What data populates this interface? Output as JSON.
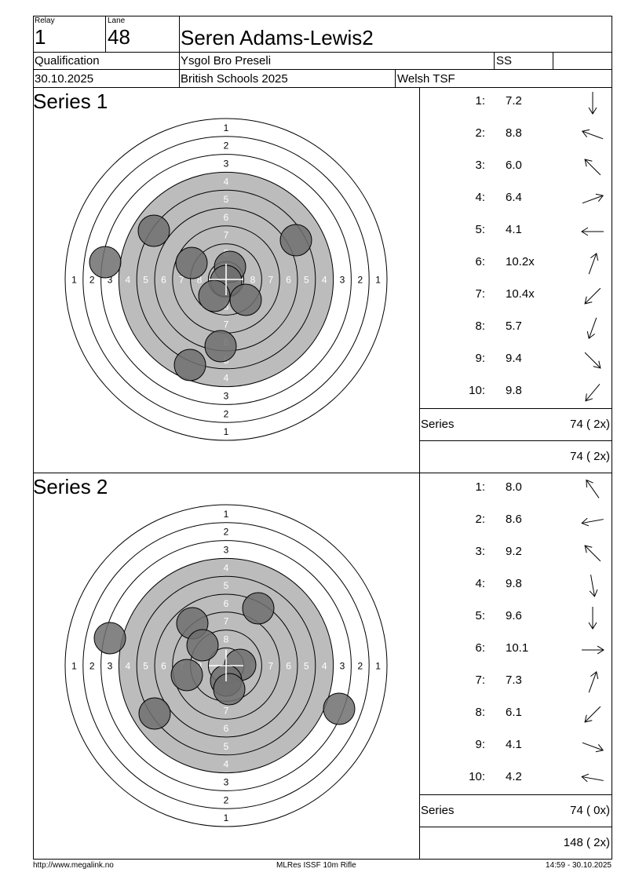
{
  "header": {
    "relay_label": "Relay",
    "relay_value": "1",
    "lane_label": "Lane",
    "lane_value": "48",
    "athlete_name": "Seren Adams-Lewis2",
    "stage": "Qualification",
    "club": "Ysgol Bro Preseli",
    "category": "SS",
    "category_extra": "",
    "date": "30.10.2025",
    "competition": "British Schools 2025",
    "organisation": "Welsh TSF"
  },
  "series": [
    {
      "title": "Series 1",
      "ring_labels": [
        "1",
        "2",
        "3",
        "4",
        "5",
        "6",
        "7",
        "8"
      ],
      "shots": [
        {
          "num": "1:",
          "score": "7.2",
          "dir": 180
        },
        {
          "num": "2:",
          "score": "8.8",
          "dir": -70
        },
        {
          "num": "3:",
          "score": "6.0",
          "dir": -45
        },
        {
          "num": "4:",
          "score": "6.4",
          "dir": 70
        },
        {
          "num": "5:",
          "score": "4.1",
          "dir": -90
        },
        {
          "num": "6:",
          "score": "10.2x",
          "dir": 20
        },
        {
          "num": "7:",
          "score": "10.4x",
          "dir": -135
        },
        {
          "num": "8:",
          "score": "5.7",
          "dir": -160
        },
        {
          "num": "9:",
          "score": "9.4",
          "dir": 135
        },
        {
          "num": "10:",
          "score": "9.8",
          "dir": -140
        }
      ],
      "hits": [
        {
          "x": -92,
          "y": -62
        },
        {
          "x": -154,
          "y": -22
        },
        {
          "x": 89,
          "y": -50
        },
        {
          "x": -44,
          "y": -21
        },
        {
          "x": 5,
          "y": -16
        },
        {
          "x": 0,
          "y": 2
        },
        {
          "x": -15,
          "y": 21
        },
        {
          "x": 25,
          "y": 26
        },
        {
          "x": -7,
          "y": 85
        },
        {
          "x": -46,
          "y": 109
        }
      ],
      "series_label": "Series",
      "series_total": "74 ( 2x)",
      "running_total": "74 ( 2x)"
    },
    {
      "title": "Series 2",
      "ring_labels": [
        "1",
        "2",
        "3",
        "4",
        "5",
        "6",
        "7",
        "8"
      ],
      "shots": [
        {
          "num": "1:",
          "score": "8.0",
          "dir": -35
        },
        {
          "num": "2:",
          "score": "8.6",
          "dir": -100
        },
        {
          "num": "3:",
          "score": "9.2",
          "dir": -45
        },
        {
          "num": "4:",
          "score": "9.8",
          "dir": 170
        },
        {
          "num": "5:",
          "score": "9.6",
          "dir": 180
        },
        {
          "num": "6:",
          "score": "10.1",
          "dir": 90
        },
        {
          "num": "7:",
          "score": "7.3",
          "dir": 20
        },
        {
          "num": "8:",
          "score": "6.1",
          "dir": -135
        },
        {
          "num": "9:",
          "score": "4.1",
          "dir": 110
        },
        {
          "num": "10:",
          "score": "4.2",
          "dir": -80
        }
      ],
      "hits": [
        {
          "x": -148,
          "y": -35
        },
        {
          "x": -43,
          "y": -54
        },
        {
          "x": 41,
          "y": -73
        },
        {
          "x": -30,
          "y": -26
        },
        {
          "x": -50,
          "y": 12
        },
        {
          "x": 18,
          "y": -1
        },
        {
          "x": 0,
          "y": 19
        },
        {
          "x": 4,
          "y": 30
        },
        {
          "x": -91,
          "y": 61
        },
        {
          "x": 144,
          "y": 55
        }
      ],
      "series_label": "Series",
      "series_total": "74 ( 0x)",
      "running_total": "148 ( 2x)"
    }
  ],
  "footer": {
    "url": "http://www.megalink.no",
    "software": "MLRes ISSF 10m Rifle",
    "timestamp": "14:59 - 30.10.2025"
  },
  "colors": {
    "black_area": "#bcbcbc",
    "hit_fill": "#6e6e6e",
    "line": "#000000"
  }
}
